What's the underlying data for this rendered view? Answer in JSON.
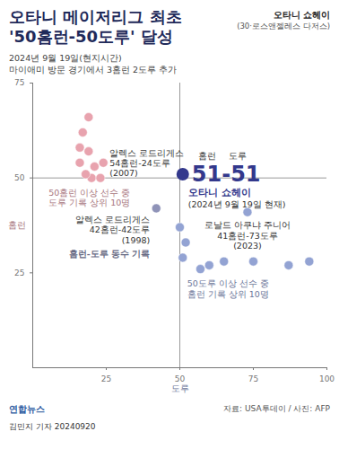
{
  "chart_data": {
    "type": "scatter",
    "title": [
      "오타니 메이저리그 최초",
      "'50홈런-50도루' 달성"
    ],
    "subtitle": [
      "2024년 9월 19일(현지시간)",
      "마이애미 방문 경기에서 3홈런 2도루 추가"
    ],
    "photo_caption": [
      "오타니 쇼헤이",
      "(30·로스앤젤레스 다저스)"
    ],
    "x_label": "도루",
    "y_label": "홈런",
    "xlim": [
      0,
      100
    ],
    "ylim": [
      0,
      75
    ],
    "xticks": [
      25,
      50,
      75,
      100
    ],
    "yticks": [
      25,
      50,
      75
    ],
    "reference_lines": {
      "x": 50,
      "y": 50
    },
    "series": [
      {
        "name": "50홈런 이상 선수 중 도루 기록 상위 10명",
        "color": "#e8a3ae",
        "x": [
          19,
          17,
          16,
          19,
          16,
          21,
          24,
          20,
          23,
          18
        ],
        "y": [
          66,
          62,
          58,
          57,
          54,
          53,
          54,
          50,
          50,
          51
        ]
      },
      {
        "name": "홈런-도루 동수 기록",
        "color": "#8f93b8",
        "x": [
          42
        ],
        "y": [
          42
        ]
      },
      {
        "name": "50도루 이상 선수 중 홈런 기록 상위 10명",
        "color": "#93a3d3",
        "x": [
          50,
          52,
          51,
          57,
          60,
          65,
          73,
          75,
          87,
          94
        ],
        "y": [
          37,
          33,
          29,
          26,
          27,
          28,
          41,
          28,
          27,
          28
        ]
      }
    ],
    "highlight": {
      "name": "오타니 쇼헤이",
      "note": "(2024년 9월 19일 현재)",
      "x": 51,
      "y": 51,
      "field_labels": [
        "홈런",
        "도루"
      ],
      "value_label": "51-51",
      "color": "#33388c"
    },
    "annotations": [
      {
        "x": 24,
        "y": 54,
        "text": [
          "알렉스 로드리게스",
          "54홈런-24도루",
          "(2007)"
        ]
      },
      {
        "x": 42,
        "y": 42,
        "text": [
          "알렉스 로드리게스",
          "42홈런-42도루",
          "(1998)"
        ]
      },
      {
        "x": 73,
        "y": 41,
        "text": [
          "로날드 아쿠냐 주니어",
          "41홈런-73도루",
          "(2023)"
        ]
      }
    ],
    "logo": "연합뉴스",
    "source": "자료: USA투데이 / 사진: AFP",
    "byline": "김민지 기자 20240920"
  }
}
